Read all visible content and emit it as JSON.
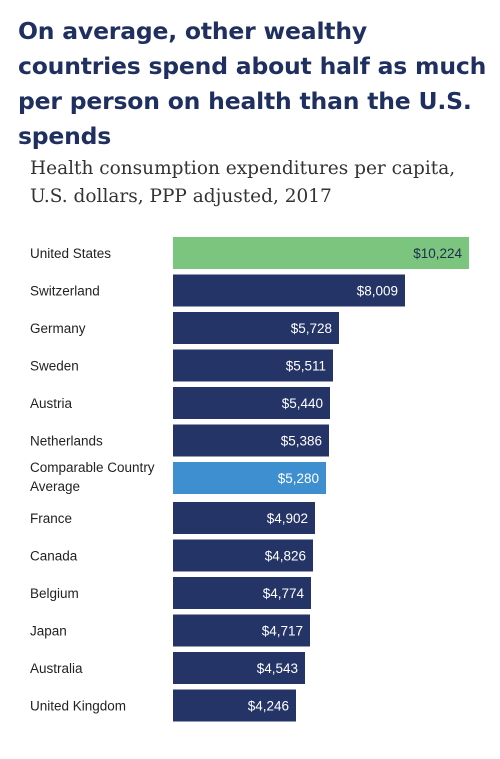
{
  "headline": "On average, other wealthy countries spend about half as much per person on health than the U.S. spends",
  "colors": {
    "default_bar": "#253466",
    "highlight_us": "#7cc57f",
    "highlight_average": "#3e8fd0",
    "headline": "#1f2f5f"
  },
  "chart_data": {
    "type": "bar",
    "orientation": "horizontal",
    "title": "Health consumption expenditures per capita, U.S. dollars, PPP adjusted, 2017",
    "xlim": [
      0,
      10224
    ],
    "grid": false,
    "categories": [
      "United States",
      "Switzerland",
      "Germany",
      "Sweden",
      "Austria",
      "Netherlands",
      "Comparable Country Average",
      "France",
      "Canada",
      "Belgium",
      "Japan",
      "Australia",
      "United Kingdom"
    ],
    "values": [
      10224,
      8009,
      5728,
      5511,
      5440,
      5386,
      5280,
      4902,
      4826,
      4774,
      4717,
      4543,
      4246
    ],
    "value_labels": [
      "$10,224",
      "$8,009",
      "$5,728",
      "$5,511",
      "$5,440",
      "$5,386",
      "$5,280",
      "$4,902",
      "$4,826",
      "$4,774",
      "$4,717",
      "$4,543",
      "$4,246"
    ],
    "highlight": {
      "United States": "highlight_us",
      "Comparable Country Average": "highlight_average"
    }
  }
}
